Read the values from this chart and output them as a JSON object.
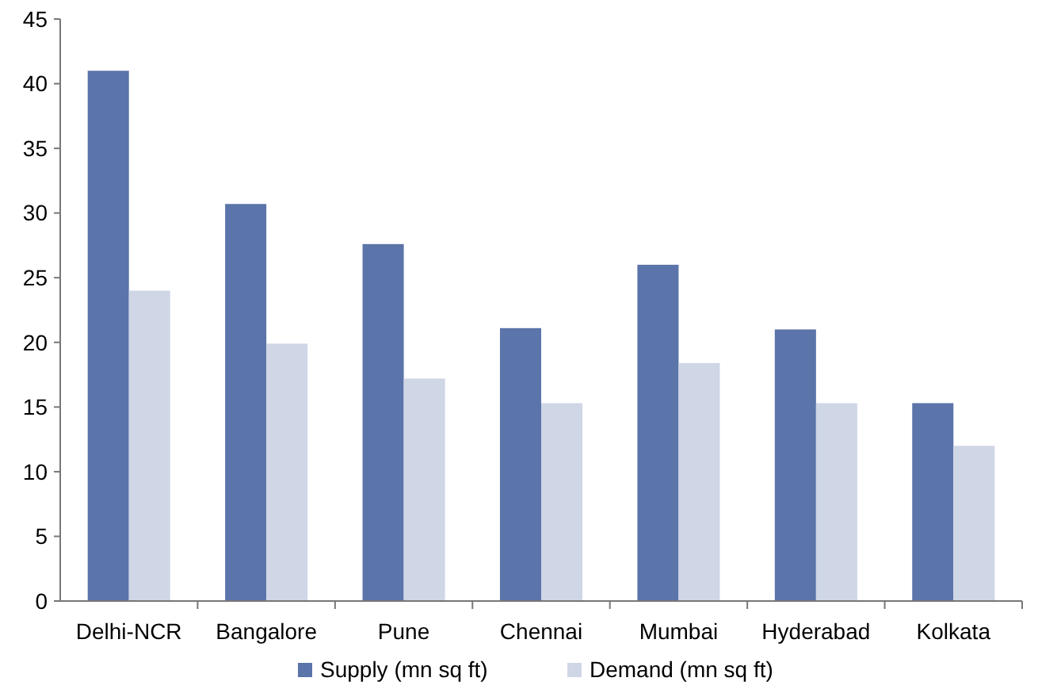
{
  "chart_data": {
    "type": "bar",
    "categories": [
      "Delhi-NCR",
      "Bangalore",
      "Pune",
      "Chennai",
      "Mumbai",
      "Hyderabad",
      "Kolkata"
    ],
    "series": [
      {
        "name": "Supply (mn sq ft)",
        "color": "#5b74a9",
        "values": [
          41,
          30.7,
          27.6,
          21.1,
          26,
          21,
          15.3
        ]
      },
      {
        "name": "Demand (mn sq ft)",
        "color": "#cfd6e6",
        "values": [
          24,
          19.9,
          17.2,
          15.3,
          18.4,
          15.3,
          12
        ]
      }
    ],
    "ylim": [
      0,
      45
    ],
    "yticks": [
      0,
      5,
      10,
      15,
      20,
      25,
      30,
      35,
      40,
      45
    ],
    "grid": false,
    "legend": "bottom"
  }
}
